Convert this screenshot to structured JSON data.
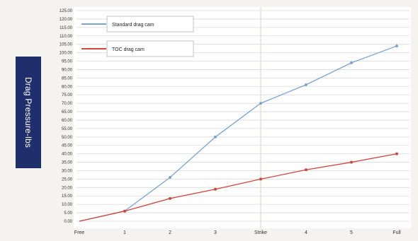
{
  "ylabel": "Drag Pressure-lbs",
  "colors": {
    "standard": "#7aa4d6",
    "toc": "#d0463a",
    "grid": "#d9d9d9",
    "strike_line": "#e9e4c3",
    "label_box": "#1f2f6b"
  },
  "chart_data": {
    "type": "line",
    "title": "",
    "xlabel": "",
    "ylabel": "Drag Pressure-lbs",
    "categories": [
      "Free",
      "1",
      "2",
      "3",
      "Strike",
      "4",
      "5",
      "Full"
    ],
    "y_ticks": [
      "0.00",
      "5.00",
      "10.00",
      "15.00",
      "20.00",
      "25.00",
      "30.00",
      "35.00",
      "40.00",
      "45.00",
      "50.00",
      "55.00",
      "60.00",
      "65.00",
      "70.00",
      "75.00",
      "80.00",
      "85.00",
      "90.00",
      "95.00",
      "100.00",
      "105.00",
      "110.00",
      "115.00",
      "120.00",
      "125.00"
    ],
    "ylim": [
      0,
      125
    ],
    "grid": true,
    "legend_position": "top-left",
    "series": [
      {
        "name": "Standard drag cam",
        "color": "#7aa4d6",
        "values": [
          0,
          6,
          26,
          50,
          70,
          81,
          94,
          104
        ]
      },
      {
        "name": "TOC  drag cam",
        "color": "#d0463a",
        "values": [
          0,
          6,
          13.5,
          19,
          25,
          30.5,
          35,
          40
        ]
      }
    ]
  }
}
